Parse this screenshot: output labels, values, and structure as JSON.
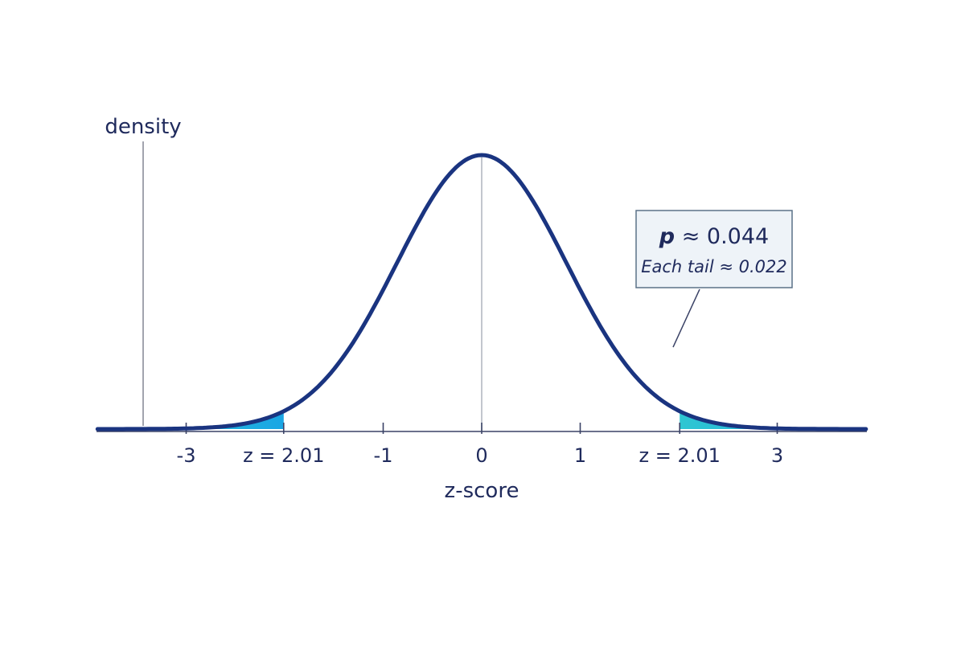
{
  "chart_data": {
    "type": "area",
    "title": "",
    "xlabel": "z-score",
    "ylabel": "density",
    "xlim": [
      -3.9,
      3.9
    ],
    "ylim": [
      0,
      0.4
    ],
    "grid": false,
    "distribution": "standard normal",
    "x_tick_labels": [
      {
        "x": -3,
        "label": "-3"
      },
      {
        "x": -2.01,
        "label": "z = 2.01"
      },
      {
        "x": -1,
        "label": "-1"
      },
      {
        "x": 0,
        "label": "0"
      },
      {
        "x": 1,
        "label": "1"
      },
      {
        "x": 2.01,
        "label": "z = 2.01"
      },
      {
        "x": 3,
        "label": "3"
      }
    ],
    "shaded_regions": [
      {
        "name": "left tail",
        "from": -3.9,
        "to": -2.01,
        "area": 0.022
      },
      {
        "name": "right tail",
        "from": 2.01,
        "to": 3.9,
        "area": 0.022
      }
    ],
    "annotation": {
      "p_symbol": "p",
      "p_text": " ≈ 0.044",
      "tail_text": "Each tail ≈ 0.022"
    },
    "colors": {
      "curve": "#1a3480",
      "tail_fill": "#19b4e6",
      "axis": "#3a4266",
      "text": "#1f2a5c",
      "annotation_bg": "#eef3f8",
      "annotation_border": "#5c7287"
    }
  }
}
